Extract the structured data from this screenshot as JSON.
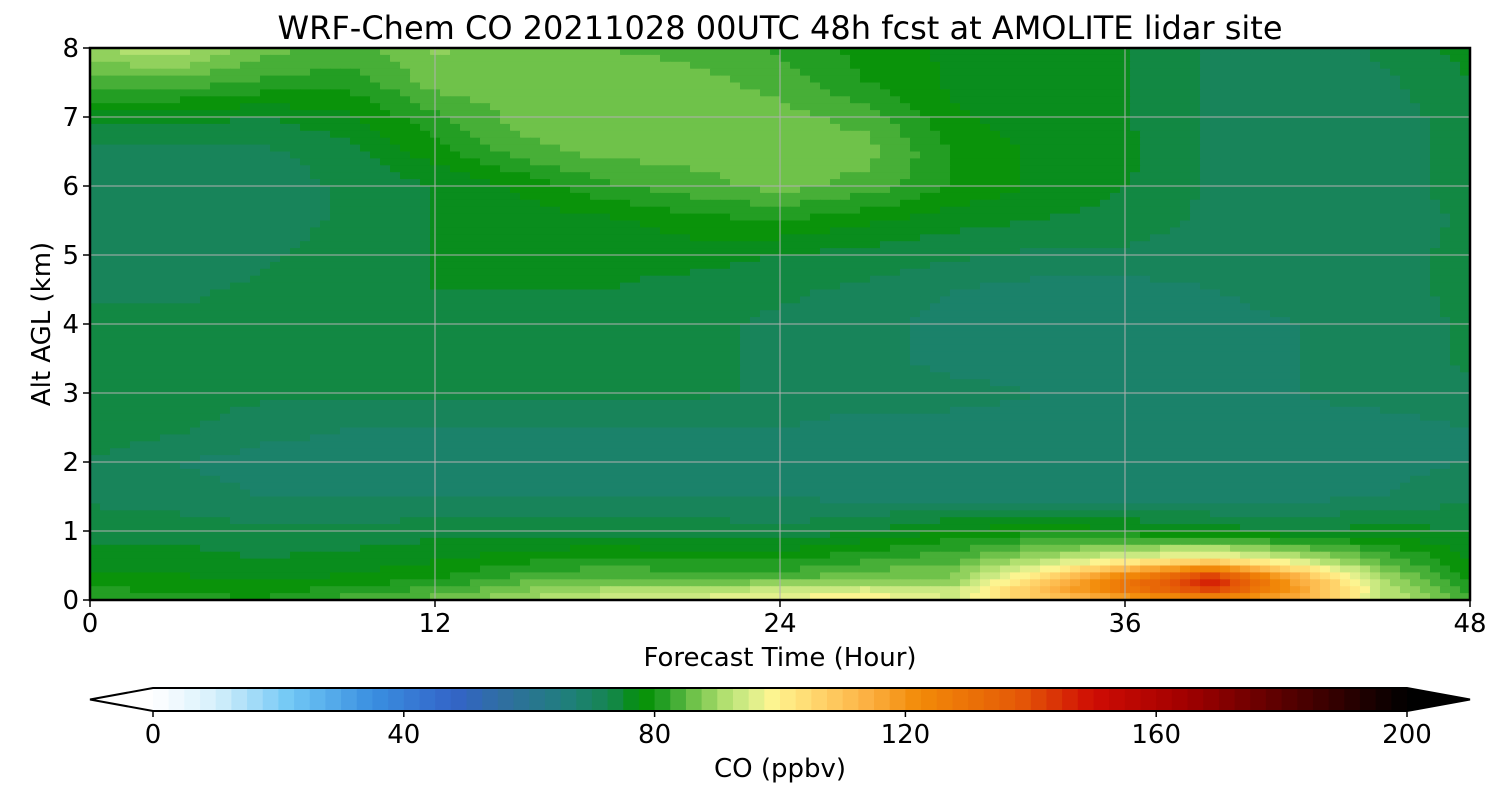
{
  "chart_data": {
    "type": "heatmap",
    "title": "WRF-Chem CO  20211028 00UTC 48h fcst at AMOLITE lidar site",
    "xlabel": "Forecast Time (Hour)",
    "ylabel": "Alt AGL (km)",
    "xlim": [
      0,
      48
    ],
    "ylim": [
      0,
      8
    ],
    "x_ticks": [
      "0",
      "12",
      "24",
      "36",
      "48"
    ],
    "y_ticks": [
      "0",
      "1",
      "2",
      "3",
      "4",
      "5",
      "6",
      "7",
      "8"
    ],
    "grid": true,
    "x_hours": [
      0,
      3,
      6,
      9,
      12,
      15,
      18,
      21,
      24,
      27,
      30,
      33,
      36,
      39,
      42,
      45,
      48
    ],
    "z_km": [
      0,
      0.1,
      0.3,
      0.6,
      1.0,
      1.5,
      2.0,
      2.5,
      3.0,
      3.5,
      4.0,
      4.5,
      5.0,
      5.5,
      6.0,
      6.5,
      7.0,
      7.5,
      8.0
    ],
    "co_ppbv": [
      [
        82,
        82,
        80,
        84,
        86,
        90,
        94,
        96,
        98,
        99,
        95,
        106,
        112,
        116,
        112,
        92,
        84
      ],
      [
        81,
        80,
        79,
        82,
        84,
        88,
        92,
        93,
        96,
        98,
        94,
        112,
        128,
        140,
        118,
        93,
        82
      ],
      [
        79,
        78,
        77,
        78,
        80,
        84,
        86,
        85,
        85,
        87,
        88,
        104,
        128,
        150,
        116,
        90,
        79
      ],
      [
        76,
        76,
        75,
        76,
        77,
        79,
        80,
        79,
        79,
        82,
        84,
        90,
        96,
        100,
        92,
        84,
        77
      ],
      [
        74,
        74,
        73,
        73,
        74,
        74,
        74,
        74,
        73,
        75,
        78,
        79,
        78,
        76,
        75,
        76,
        75
      ],
      [
        72,
        71,
        70,
        70,
        70,
        70,
        70,
        70,
        70,
        69,
        69,
        69,
        69,
        69,
        69,
        70,
        72
      ],
      [
        72,
        70,
        69,
        69,
        69,
        69,
        69,
        69,
        69,
        68,
        68,
        68,
        68,
        68,
        68,
        69,
        70
      ],
      [
        75,
        73,
        71,
        70,
        70,
        70,
        70,
        70,
        70,
        69,
        69,
        69,
        69,
        69,
        69,
        69,
        70
      ],
      [
        74,
        74,
        73,
        73,
        73,
        73,
        73,
        73,
        72,
        71,
        71,
        70,
        70,
        70,
        70,
        71,
        72
      ],
      [
        74,
        74,
        74,
        74,
        74,
        74,
        73,
        73,
        72,
        71,
        69,
        68,
        68,
        69,
        70,
        71,
        73
      ],
      [
        73,
        73,
        73,
        74,
        74,
        74,
        74,
        73,
        72,
        71,
        69,
        68,
        68,
        69,
        70,
        71,
        73
      ],
      [
        72,
        72,
        73,
        74,
        75,
        75,
        75,
        74,
        73,
        72,
        70,
        69,
        69,
        70,
        71,
        72,
        73
      ],
      [
        71,
        71,
        72,
        74,
        75,
        75,
        76,
        76,
        75,
        74,
        73,
        72,
        72,
        71,
        71,
        72,
        73
      ],
      [
        70,
        70,
        71,
        73,
        75,
        76,
        77,
        79,
        80,
        78,
        76,
        75,
        74,
        72,
        71,
        71,
        73
      ],
      [
        70,
        70,
        71,
        73,
        75,
        78,
        82,
        84,
        86,
        84,
        80,
        77,
        75,
        72,
        70,
        71,
        74
      ],
      [
        72,
        72,
        72,
        74,
        79,
        84,
        86,
        86,
        86,
        86,
        80,
        77,
        76,
        72,
        70,
        71,
        74
      ],
      [
        76,
        76,
        75,
        77,
        82,
        86,
        87,
        86,
        86,
        84,
        78,
        76,
        75,
        72,
        70,
        71,
        74
      ],
      [
        84,
        84,
        82,
        81,
        86,
        87,
        87,
        86,
        84,
        80,
        77,
        76,
        75,
        72,
        71,
        72,
        75
      ],
      [
        90,
        92,
        86,
        84,
        88,
        86,
        85,
        84,
        82,
        79,
        77,
        76,
        75,
        72,
        71,
        73,
        76
      ]
    ],
    "colorbar": {
      "label": "CO  (ppbv)",
      "ticks": [
        "0",
        "40",
        "80",
        "120",
        "160",
        "200"
      ],
      "min": 0,
      "max": 200,
      "step": 2.5,
      "extend": "both",
      "stops": [
        {
          "v": 0,
          "c": "#ffffff"
        },
        {
          "v": 10,
          "c": "#d6f0fb"
        },
        {
          "v": 22,
          "c": "#70c7f5"
        },
        {
          "v": 35,
          "c": "#3a8fe0"
        },
        {
          "v": 48,
          "c": "#3364c8"
        },
        {
          "v": 56,
          "c": "#2f6fa0"
        },
        {
          "v": 66,
          "c": "#1f7f7c"
        },
        {
          "v": 73,
          "c": "#15864f"
        },
        {
          "v": 78,
          "c": "#029002"
        },
        {
          "v": 82,
          "c": "#2aa12a"
        },
        {
          "v": 86,
          "c": "#6cc048"
        },
        {
          "v": 91,
          "c": "#b0df6e"
        },
        {
          "v": 95,
          "c": "#d6ee8a"
        },
        {
          "v": 99,
          "c": "#fff490"
        },
        {
          "v": 105,
          "c": "#ffd970"
        },
        {
          "v": 114,
          "c": "#fcb042"
        },
        {
          "v": 122,
          "c": "#f28b08"
        },
        {
          "v": 138,
          "c": "#e55a07"
        },
        {
          "v": 150,
          "c": "#cf0c04"
        },
        {
          "v": 165,
          "c": "#a00000"
        },
        {
          "v": 180,
          "c": "#5a0000"
        },
        {
          "v": 200,
          "c": "#000000"
        }
      ]
    }
  }
}
